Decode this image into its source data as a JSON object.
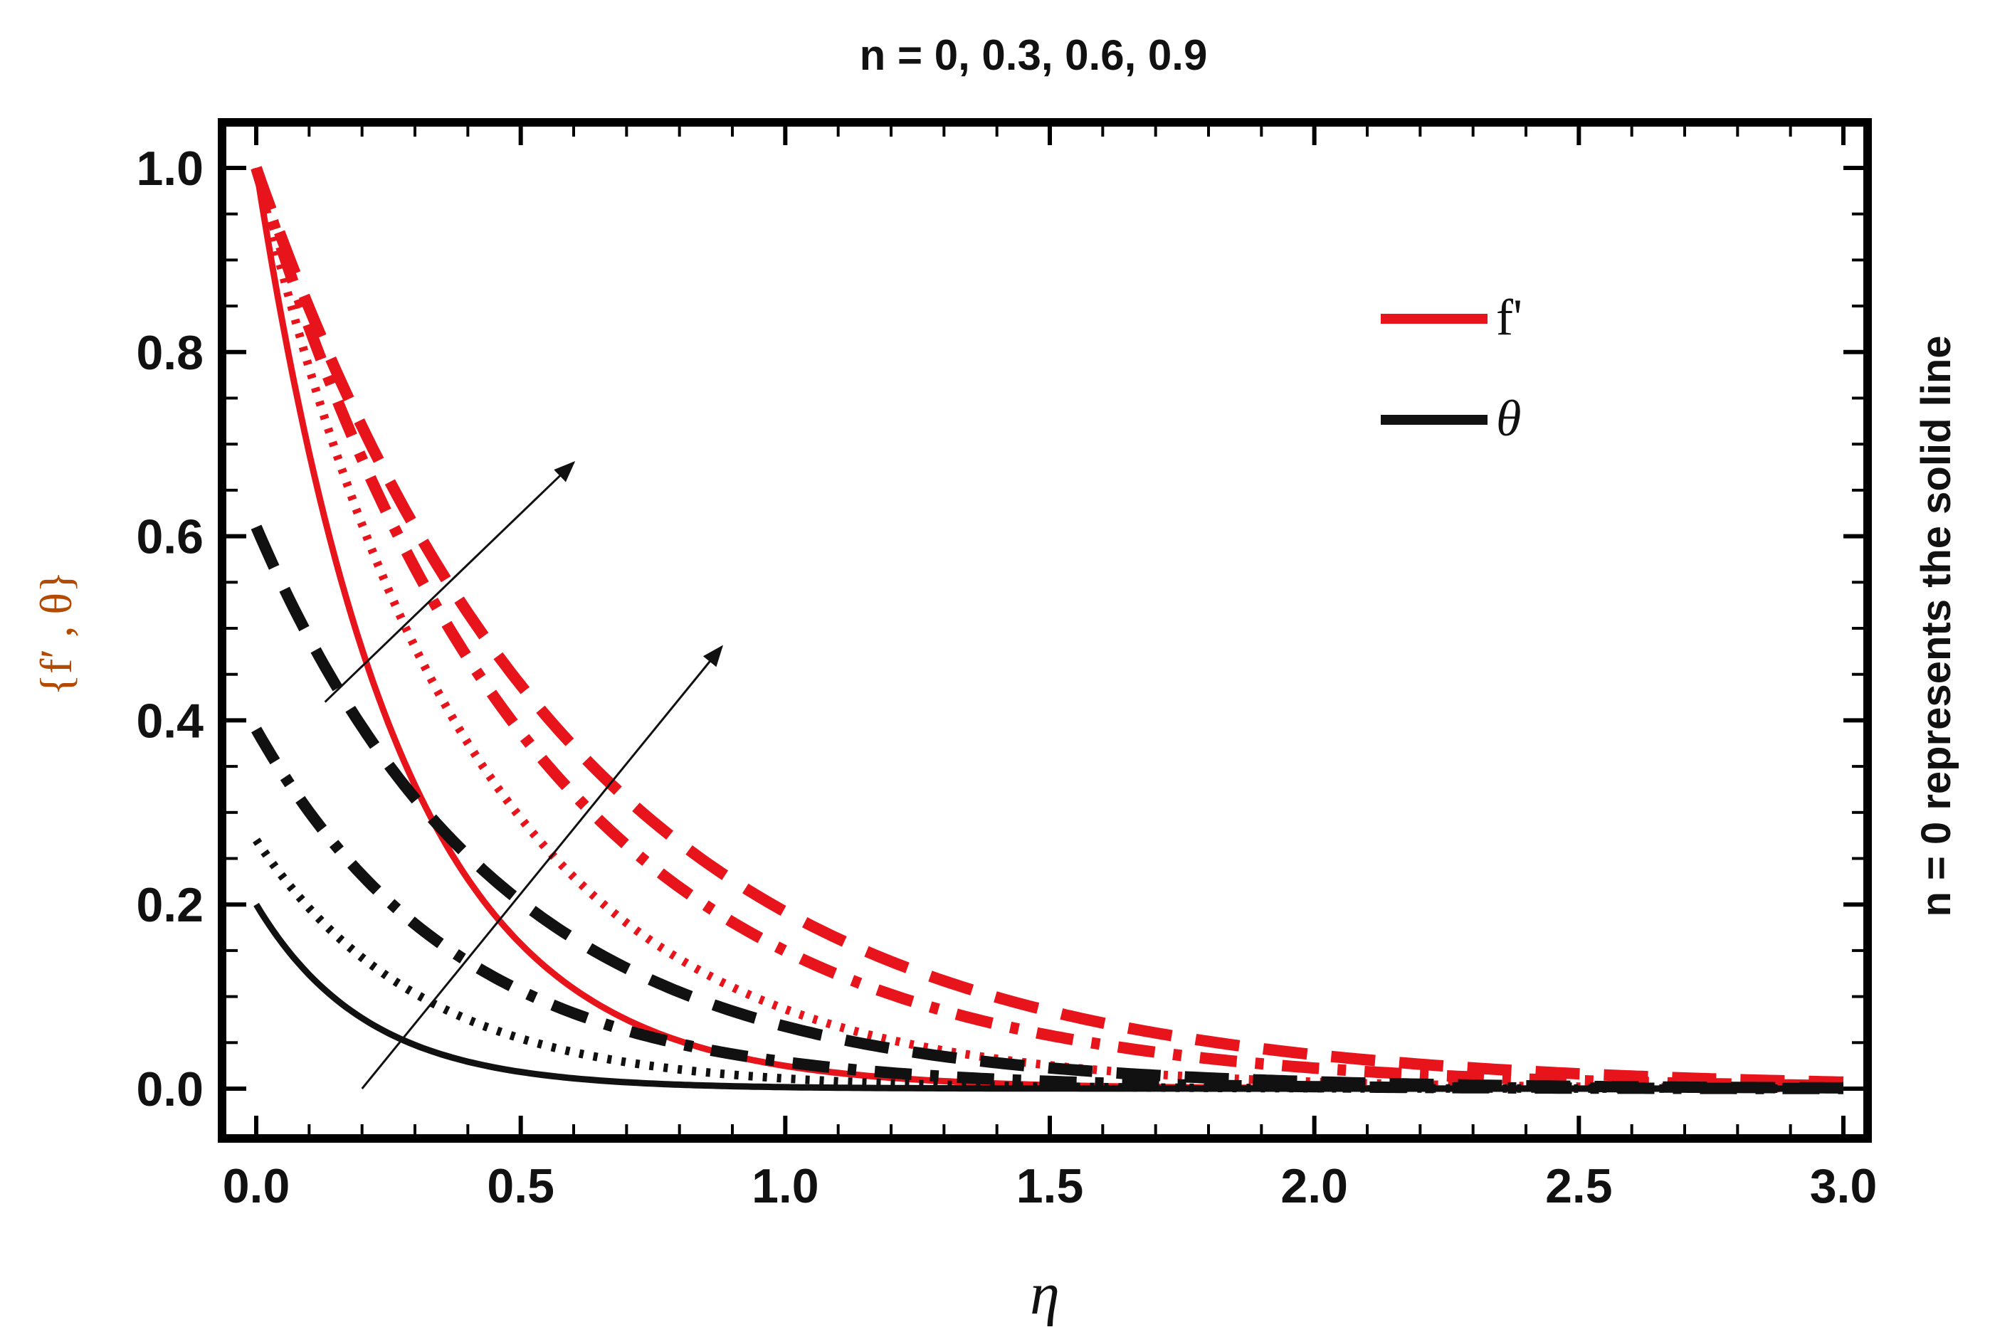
{
  "chart_data": {
    "type": "line",
    "title": "n = 0, 0.3, 0.6, 0.9",
    "xlabel": "η",
    "ylabel": "{f′ , θ}",
    "side_annotation": "n = 0 represents the solid line",
    "xlim": [
      0.0,
      3.0
    ],
    "ylim": [
      -0.05,
      1.05
    ],
    "xticks": [
      "0.0",
      "0.5",
      "1.0",
      "1.5",
      "2.0",
      "2.5",
      "3.0"
    ],
    "yticks": [
      "0.0",
      "0.2",
      "0.4",
      "0.6",
      "0.8",
      "1.0"
    ],
    "legend": [
      {
        "label": "f'",
        "color": "#e8141c"
      },
      {
        "label": "θ",
        "color": "#111111"
      }
    ],
    "arrows": [
      {
        "from": [
          0.13,
          0.42
        ],
        "to": [
          0.6,
          0.68
        ]
      },
      {
        "from": [
          0.2,
          0.0
        ],
        "to": [
          0.88,
          0.48
        ]
      }
    ],
    "series": [
      {
        "name": "f' (n = 0)",
        "color": "#e8141c",
        "style": "solid",
        "y0": 1.0,
        "decay": 3.7
      },
      {
        "name": "f' (n = 0.3)",
        "color": "#e8141c",
        "style": "dotted",
        "y0": 1.0,
        "decay": 2.45
      },
      {
        "name": "f' (n = 0.6)",
        "color": "#e8141c",
        "style": "dashdot",
        "y0": 1.0,
        "decay": 1.9
      },
      {
        "name": "f' (n = 0.9)",
        "color": "#e8141c",
        "style": "dashed",
        "y0": 1.0,
        "decay": 1.65
      },
      {
        "name": "θ (n = 0)",
        "color": "#111111",
        "style": "solid",
        "y0": 0.2,
        "decay": 4.8
      },
      {
        "name": "θ (n = 0.3)",
        "color": "#111111",
        "style": "dotted",
        "y0": 0.27,
        "decay": 3.2
      },
      {
        "name": "θ (n = 0.6)",
        "color": "#111111",
        "style": "dashdot",
        "y0": 0.39,
        "decay": 2.6
      },
      {
        "name": "θ (n = 0.9)",
        "color": "#111111",
        "style": "dashed",
        "y0": 0.61,
        "decay": 2.2
      }
    ]
  }
}
